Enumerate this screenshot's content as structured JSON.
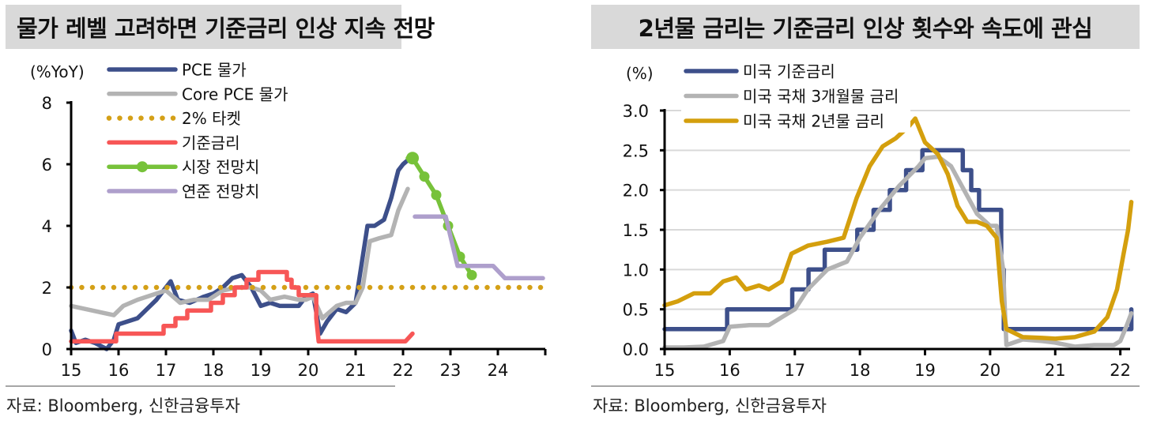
{
  "left": {
    "title": "물가 레벨 고려하면 기준금리 인상 지속 전망",
    "unit_label": "(%YoY)",
    "source": "자료: Bloomberg, 신한금융투자",
    "legend": [
      {
        "label": "PCE 물가",
        "color": "#3d4f8a",
        "style": "solid"
      },
      {
        "label": "Core PCE 물가",
        "color": "#b3b3b3",
        "style": "solid"
      },
      {
        "label": "2% 타켓",
        "color": "#d4a017",
        "style": "dotted"
      },
      {
        "label": "기준금리",
        "color": "#f75656",
        "style": "solid"
      },
      {
        "label": "시장 전망치",
        "color": "#77c23a",
        "style": "solid-marker"
      },
      {
        "label": "연준 전망치",
        "color": "#ae9fcc",
        "style": "solid"
      }
    ],
    "y_ticks": [
      "0",
      "2",
      "4",
      "6",
      "8"
    ],
    "x_ticks": [
      "15",
      "16",
      "17",
      "18",
      "19",
      "20",
      "21",
      "22",
      "23",
      "24"
    ]
  },
  "right": {
    "title": "2년물 금리는 기준금리 인상 횟수와 속도에 관심",
    "unit_label": "(%)",
    "source": "자료: Bloomberg, 신한금융투자",
    "legend": [
      {
        "label": "미국 기준금리",
        "color": "#3d4f8a"
      },
      {
        "label": "미국 국채 3개월물 금리",
        "color": "#b3b3b3"
      },
      {
        "label": "미국 국채 2년물 금리",
        "color": "#d49f0d"
      }
    ],
    "y_ticks": [
      "0.0",
      "0.5",
      "1.0",
      "1.5",
      "2.0",
      "2.5",
      "3.0"
    ],
    "x_ticks": [
      "15",
      "16",
      "17",
      "18",
      "19",
      "20",
      "21",
      "22"
    ]
  },
  "chart_data": [
    {
      "type": "line",
      "title": "물가 레벨 고려하면 기준금리 인상 지속 전망",
      "ylabel": "(%YoY)",
      "xlabel": "",
      "ylim": [
        0,
        8
      ],
      "xlim": [
        2015,
        2025
      ],
      "grid": false,
      "legend_position": "top-left inside",
      "x_tick_labels": [
        "15",
        "16",
        "17",
        "18",
        "19",
        "20",
        "21",
        "22",
        "23",
        "24"
      ],
      "series": [
        {
          "name": "PCE 물가",
          "x": [
            2015.0,
            2015.1,
            2015.3,
            2015.5,
            2015.75,
            2015.9,
            2016.0,
            2016.2,
            2016.4,
            2016.6,
            2016.8,
            2017.1,
            2017.25,
            2017.5,
            2017.8,
            2018.0,
            2018.2,
            2018.4,
            2018.6,
            2018.8,
            2019.0,
            2019.2,
            2019.4,
            2019.6,
            2019.8,
            2019.95,
            2020.1,
            2020.25,
            2020.4,
            2020.6,
            2020.8,
            2021.0,
            2021.1,
            2021.25,
            2021.4,
            2021.6,
            2021.75,
            2021.9,
            2022.0,
            2022.15
          ],
          "values": [
            0.6,
            0.2,
            0.3,
            0.2,
            0.0,
            0.3,
            0.8,
            0.9,
            1.0,
            1.3,
            1.6,
            2.2,
            1.6,
            1.5,
            1.7,
            1.8,
            2.0,
            2.3,
            2.4,
            2.0,
            1.4,
            1.5,
            1.4,
            1.4,
            1.4,
            1.7,
            1.8,
            0.5,
            0.9,
            1.3,
            1.2,
            1.5,
            2.5,
            4.0,
            4.0,
            4.2,
            4.9,
            5.8,
            6.0,
            6.2
          ]
        },
        {
          "name": "Core PCE 물가",
          "x": [
            2015.0,
            2015.3,
            2015.6,
            2015.9,
            2016.1,
            2016.4,
            2016.8,
            2017.0,
            2017.3,
            2017.6,
            2017.9,
            2018.2,
            2018.5,
            2018.8,
            2019.0,
            2019.2,
            2019.5,
            2019.8,
            2019.95,
            2020.1,
            2020.3,
            2020.6,
            2020.8,
            2021.0,
            2021.15,
            2021.3,
            2021.5,
            2021.75,
            2021.9,
            2022.1
          ],
          "values": [
            1.4,
            1.3,
            1.2,
            1.1,
            1.4,
            1.6,
            1.8,
            1.9,
            1.5,
            1.6,
            1.6,
            1.9,
            2.0,
            2.0,
            1.9,
            1.6,
            1.7,
            1.6,
            1.6,
            1.7,
            1.0,
            1.4,
            1.5,
            1.5,
            2.0,
            3.5,
            3.6,
            3.7,
            4.5,
            5.2
          ]
        },
        {
          "name": "2% 타켓",
          "x": [
            2015.0,
            2025.0
          ],
          "values": [
            2.0,
            2.0
          ]
        },
        {
          "name": "기준금리",
          "x": [
            2015.0,
            2015.95,
            2015.95,
            2016.95,
            2016.95,
            2017.2,
            2017.2,
            2017.45,
            2017.45,
            2017.95,
            2017.95,
            2018.2,
            2018.2,
            2018.45,
            2018.45,
            2018.7,
            2018.7,
            2018.95,
            2018.95,
            2019.55,
            2019.55,
            2019.65,
            2019.65,
            2019.8,
            2019.8,
            2020.17,
            2020.17,
            2020.22,
            2020.22,
            2022.05,
            2022.2
          ],
          "values": [
            0.25,
            0.25,
            0.5,
            0.5,
            0.75,
            0.75,
            1.0,
            1.0,
            1.25,
            1.25,
            1.5,
            1.5,
            1.75,
            1.75,
            2.0,
            2.0,
            2.25,
            2.25,
            2.5,
            2.5,
            2.25,
            2.25,
            2.0,
            2.0,
            1.75,
            1.75,
            1.0,
            0.25,
            0.25,
            0.25,
            0.5
          ]
        },
        {
          "name": "시장 전망치",
          "x": [
            2022.1,
            2022.2,
            2022.45,
            2022.7,
            2022.95,
            2023.2,
            2023.45
          ],
          "values": [
            6.2,
            6.2,
            5.6,
            5.0,
            4.0,
            3.0,
            2.4
          ]
        },
        {
          "name": "연준 전망치",
          "x": [
            2022.25,
            2022.9,
            2023.15,
            2023.9,
            2024.15,
            2024.95
          ],
          "values": [
            4.3,
            4.3,
            2.7,
            2.7,
            2.3,
            2.3
          ]
        }
      ]
    },
    {
      "type": "line",
      "title": "2년물 금리는 기준금리 인상 횟수와 속도에 관심",
      "ylabel": "(%)",
      "xlabel": "",
      "ylim": [
        0.0,
        3.0
      ],
      "xlim": [
        2015,
        2022.15
      ],
      "grid": true,
      "legend_position": "top-left inside",
      "x_tick_labels": [
        "15",
        "16",
        "17",
        "18",
        "19",
        "20",
        "21",
        "22"
      ],
      "series": [
        {
          "name": "미국 기준금리",
          "x": [
            2015.0,
            2015.96,
            2015.96,
            2016.96,
            2016.96,
            2017.21,
            2017.21,
            2017.46,
            2017.46,
            2017.96,
            2017.96,
            2018.21,
            2018.21,
            2018.46,
            2018.46,
            2018.71,
            2018.71,
            2018.96,
            2018.96,
            2019.58,
            2019.58,
            2019.71,
            2019.71,
            2019.83,
            2019.83,
            2020.17,
            2020.17,
            2020.21,
            2020.21,
            2022.17,
            2022.17
          ],
          "values": [
            0.25,
            0.25,
            0.5,
            0.5,
            0.75,
            0.75,
            1.0,
            1.0,
            1.25,
            1.25,
            1.5,
            1.5,
            1.75,
            1.75,
            2.0,
            2.0,
            2.25,
            2.25,
            2.5,
            2.5,
            2.25,
            2.25,
            2.0,
            2.0,
            1.75,
            1.75,
            1.0,
            1.0,
            0.25,
            0.25,
            0.5
          ]
        },
        {
          "name": "미국 국채 3개월물 금리",
          "x": [
            2015.0,
            2015.3,
            2015.6,
            2015.9,
            2016.0,
            2016.3,
            2016.6,
            2016.9,
            2017.0,
            2017.2,
            2017.5,
            2017.8,
            2018.0,
            2018.3,
            2018.6,
            2018.9,
            2019.0,
            2019.2,
            2019.4,
            2019.6,
            2019.8,
            2020.0,
            2020.1,
            2020.2,
            2020.25,
            2020.5,
            2020.8,
            2021.0,
            2021.3,
            2021.6,
            2021.9,
            2022.0,
            2022.1,
            2022.17
          ],
          "values": [
            0.02,
            0.02,
            0.03,
            0.1,
            0.28,
            0.3,
            0.3,
            0.45,
            0.5,
            0.75,
            1.0,
            1.1,
            1.4,
            1.75,
            2.05,
            2.3,
            2.4,
            2.42,
            2.3,
            2.0,
            1.7,
            1.55,
            1.55,
            1.0,
            0.05,
            0.12,
            0.1,
            0.08,
            0.03,
            0.05,
            0.05,
            0.1,
            0.3,
            0.45
          ]
        },
        {
          "name": "미국 국채 2년물 금리",
          "x": [
            2015.0,
            2015.2,
            2015.45,
            2015.7,
            2015.9,
            2016.1,
            2016.25,
            2016.45,
            2016.6,
            2016.8,
            2016.95,
            2017.2,
            2017.5,
            2017.75,
            2017.95,
            2018.15,
            2018.35,
            2018.55,
            2018.75,
            2018.85,
            2019.0,
            2019.2,
            2019.35,
            2019.5,
            2019.65,
            2019.8,
            2019.95,
            2020.1,
            2020.18,
            2020.25,
            2020.5,
            2020.8,
            2021.0,
            2021.3,
            2021.6,
            2021.8,
            2021.95,
            2022.05,
            2022.12,
            2022.17
          ],
          "values": [
            0.55,
            0.6,
            0.7,
            0.7,
            0.85,
            0.9,
            0.75,
            0.8,
            0.75,
            0.85,
            1.2,
            1.3,
            1.35,
            1.4,
            1.9,
            2.3,
            2.55,
            2.65,
            2.8,
            2.9,
            2.6,
            2.45,
            2.2,
            1.8,
            1.6,
            1.6,
            1.55,
            1.4,
            0.6,
            0.25,
            0.15,
            0.14,
            0.13,
            0.15,
            0.22,
            0.4,
            0.75,
            1.2,
            1.5,
            1.85
          ]
        }
      ]
    }
  ]
}
